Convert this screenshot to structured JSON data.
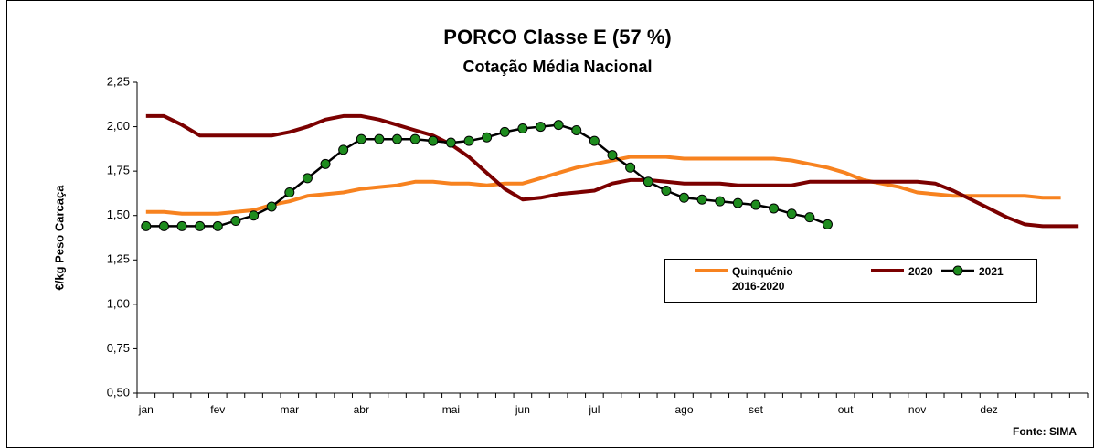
{
  "chart_data": {
    "type": "line",
    "title": "PORCO Classe E (57 %)",
    "subtitle": "Cotação Média Nacional",
    "y_label": "€/kg Peso Carcaça",
    "source": "Fonte: SIMA",
    "categories": [
      "jan",
      null,
      null,
      null,
      "fev",
      null,
      null,
      null,
      "mar",
      null,
      null,
      null,
      "abr",
      null,
      null,
      null,
      null,
      "mai",
      null,
      null,
      null,
      "jun",
      null,
      null,
      null,
      "jul",
      null,
      null,
      null,
      null,
      "ago",
      null,
      null,
      null,
      "set",
      null,
      null,
      null,
      null,
      "out",
      null,
      null,
      null,
      "nov",
      null,
      null,
      null,
      "dez",
      null,
      null,
      null,
      null,
      null
    ],
    "ylim": [
      0.5,
      2.25
    ],
    "yticks": [
      {
        "value": 0.5,
        "label": "0,50"
      },
      {
        "value": 0.75,
        "label": "0,75"
      },
      {
        "value": 1.0,
        "label": "1,00"
      },
      {
        "value": 1.25,
        "label": "1,25"
      },
      {
        "value": 1.5,
        "label": "1,50"
      },
      {
        "value": 1.75,
        "label": "1,75"
      },
      {
        "value": 2.0,
        "label": "2,00"
      },
      {
        "value": 2.25,
        "label": "2,25"
      }
    ],
    "series": [
      {
        "name": "Quinquénio 2016-2020",
        "color": "#f7821f",
        "values": [
          1.52,
          1.52,
          1.51,
          1.51,
          1.51,
          1.52,
          1.53,
          1.56,
          1.58,
          1.61,
          1.62,
          1.63,
          1.65,
          1.66,
          1.67,
          1.69,
          1.69,
          1.68,
          1.68,
          1.67,
          1.68,
          1.68,
          1.71,
          1.74,
          1.77,
          1.79,
          1.81,
          1.83,
          1.83,
          1.83,
          1.82,
          1.82,
          1.82,
          1.82,
          1.82,
          1.82,
          1.81,
          1.79,
          1.77,
          1.74,
          1.7,
          1.68,
          1.66,
          1.63,
          1.62,
          1.61,
          1.61,
          1.61,
          1.61,
          1.61,
          1.6,
          1.6,
          null
        ]
      },
      {
        "name": "2020",
        "color": "#7b0000",
        "values": [
          2.06,
          2.06,
          2.01,
          1.95,
          1.95,
          1.95,
          1.95,
          1.95,
          1.97,
          2.0,
          2.04,
          2.06,
          2.06,
          2.04,
          2.01,
          1.98,
          1.95,
          1.9,
          1.83,
          1.74,
          1.65,
          1.59,
          1.6,
          1.62,
          1.63,
          1.64,
          1.68,
          1.7,
          1.7,
          1.69,
          1.68,
          1.68,
          1.68,
          1.67,
          1.67,
          1.67,
          1.67,
          1.69,
          1.69,
          1.69,
          1.69,
          1.69,
          1.69,
          1.69,
          1.68,
          1.64,
          1.59,
          1.54,
          1.49,
          1.45,
          1.44,
          1.44,
          1.44
        ]
      },
      {
        "name": "2021",
        "color": "#000000",
        "marker_color": "#1e8c1e",
        "values": [
          1.44,
          1.44,
          1.44,
          1.44,
          1.44,
          1.47,
          1.5,
          1.55,
          1.63,
          1.71,
          1.79,
          1.87,
          1.93,
          1.93,
          1.93,
          1.93,
          1.92,
          1.91,
          1.92,
          1.94,
          1.97,
          1.99,
          2.0,
          2.01,
          1.98,
          1.92,
          1.84,
          1.77,
          1.69,
          1.64,
          1.6,
          1.59,
          1.58,
          1.57,
          1.56,
          1.54,
          1.51,
          1.49,
          1.45,
          null,
          null,
          null,
          null,
          null,
          null,
          null,
          null,
          null,
          null,
          null,
          null,
          null,
          null
        ]
      }
    ]
  }
}
